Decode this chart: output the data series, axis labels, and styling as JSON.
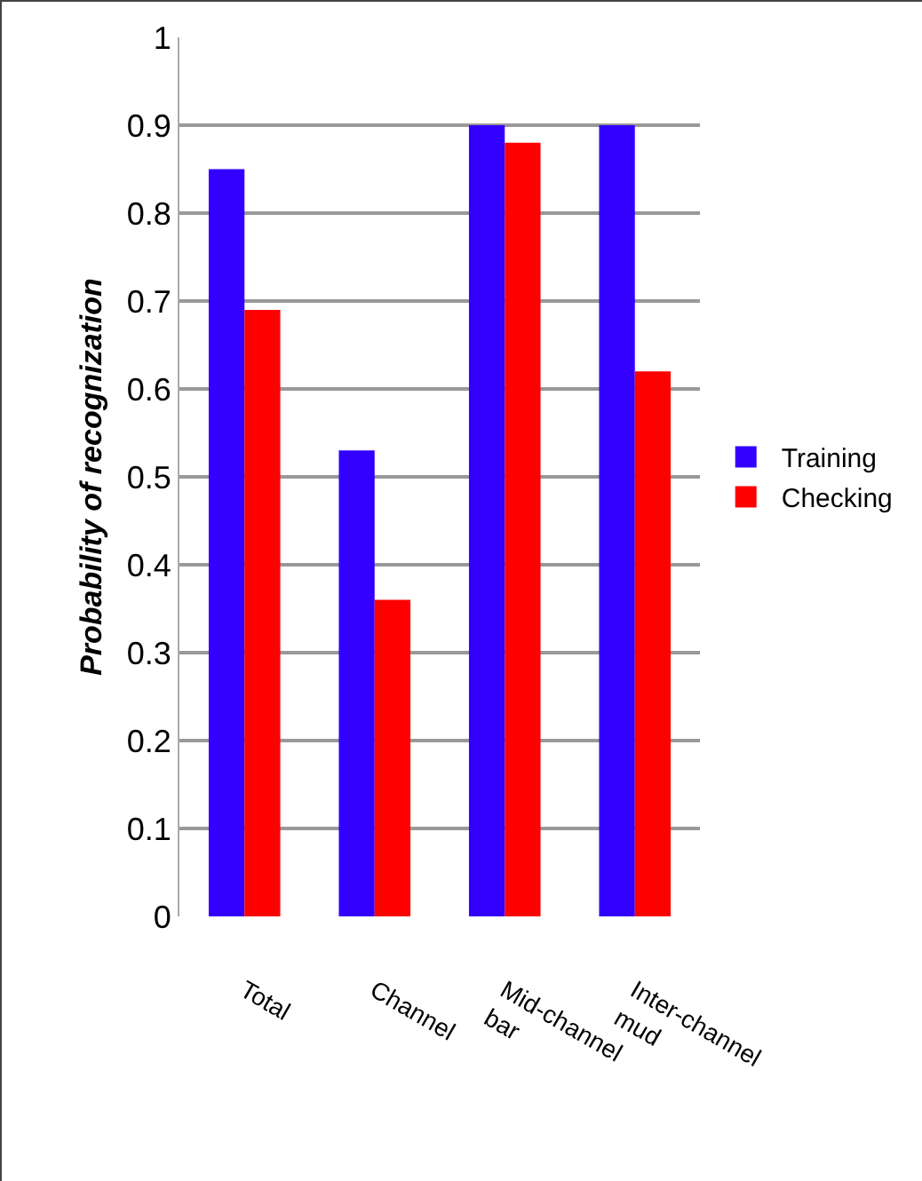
{
  "chart_data": {
    "type": "bar",
    "ylabel": "Probability of recognization",
    "categories": [
      "Total",
      "Channel",
      "Mid-channel bar",
      "Inter-channel mud"
    ],
    "series": [
      {
        "name": "Training",
        "color": "#3300ff",
        "values": [
          0.85,
          0.53,
          0.9,
          0.9
        ]
      },
      {
        "name": "Checking",
        "color": "#ff0000",
        "values": [
          0.69,
          0.36,
          0.88,
          0.62
        ]
      }
    ],
    "ylim": [
      0,
      1
    ],
    "yticks": [
      0,
      0.1,
      0.2,
      0.3,
      0.4,
      0.5,
      0.6,
      0.7,
      0.8,
      0.9,
      1
    ],
    "grid": "y",
    "legend": "right"
  }
}
